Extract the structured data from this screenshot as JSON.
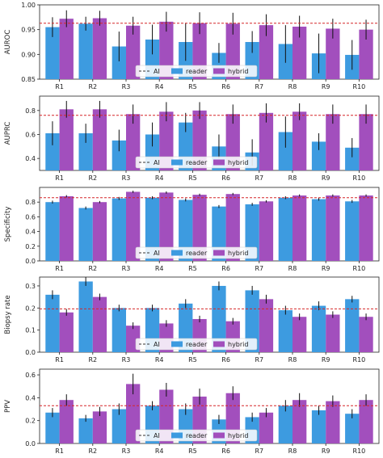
{
  "colors": {
    "reader": "#3d9be0",
    "hybrid": "#a24fbd",
    "ai_line": "#d62728",
    "error_bar": "#111111"
  },
  "legend": {
    "ai": "AI",
    "reader": "reader",
    "hybrid": "hybrid"
  },
  "chart_data": [
    {
      "type": "bar",
      "ylabel": "AUROC",
      "ylim": [
        0.85,
        1.0
      ],
      "yticks": [
        "0.85",
        "0.90",
        "0.95",
        "1.00"
      ],
      "ytick_values": [
        0.85,
        0.9,
        0.95,
        1.0
      ],
      "categories": [
        "R1",
        "R2",
        "R3",
        "R4",
        "R5",
        "R6",
        "R7",
        "R8",
        "R9",
        "R10"
      ],
      "ai_reference": 0.963,
      "series": [
        {
          "name": "reader",
          "values": [
            0.955,
            0.962,
            0.916,
            0.93,
            0.925,
            0.903,
            0.925,
            0.921,
            0.902,
            0.899
          ],
          "errors": [
            0.02,
            0.014,
            0.03,
            0.03,
            0.038,
            0.02,
            0.022,
            0.038,
            0.04,
            0.03
          ]
        },
        {
          "name": "hybrid",
          "values": [
            0.972,
            0.973,
            0.958,
            0.966,
            0.963,
            0.962,
            0.959,
            0.956,
            0.952,
            0.95
          ],
          "errors": [
            0.017,
            0.015,
            0.018,
            0.02,
            0.022,
            0.022,
            0.022,
            0.022,
            0.02,
            0.02
          ]
        }
      ],
      "grid": false,
      "legend_position": "bottom-center"
    },
    {
      "type": "bar",
      "ylabel": "AUPRC",
      "ylim": [
        0.3,
        0.92
      ],
      "yticks": [
        "0.4",
        "0.6",
        "0.8"
      ],
      "ytick_values": [
        0.4,
        0.6,
        0.8
      ],
      "categories": [
        "R1",
        "R2",
        "R3",
        "R4",
        "R5",
        "R6",
        "R7",
        "R8",
        "R9",
        "R10"
      ],
      "ai_reference": 0.76,
      "series": [
        {
          "name": "reader",
          "values": [
            0.61,
            0.61,
            0.55,
            0.6,
            0.7,
            0.5,
            0.45,
            0.62,
            0.54,
            0.49
          ],
          "errors": [
            0.1,
            0.08,
            0.09,
            0.1,
            0.08,
            0.1,
            0.11,
            0.13,
            0.07,
            0.08
          ]
        },
        {
          "name": "hybrid",
          "values": [
            0.81,
            0.81,
            0.77,
            0.79,
            0.8,
            0.77,
            0.78,
            0.79,
            0.77,
            0.77
          ],
          "errors": [
            0.07,
            0.07,
            0.08,
            0.08,
            0.07,
            0.08,
            0.08,
            0.07,
            0.08,
            0.08
          ]
        }
      ],
      "grid": false,
      "legend_position": "bottom-center"
    },
    {
      "type": "bar",
      "ylabel": "Specificity",
      "ylim": [
        0.0,
        1.0
      ],
      "yticks": [
        "0.0",
        "0.2",
        "0.4",
        "0.6",
        "0.8"
      ],
      "ytick_values": [
        0.0,
        0.2,
        0.4,
        0.6,
        0.8
      ],
      "categories": [
        "R1",
        "R2",
        "R3",
        "R4",
        "R5",
        "R6",
        "R7",
        "R8",
        "R9",
        "R10"
      ],
      "ai_reference": 0.86,
      "series": [
        {
          "name": "reader",
          "values": [
            0.8,
            0.72,
            0.85,
            0.86,
            0.83,
            0.74,
            0.77,
            0.86,
            0.84,
            0.81
          ],
          "errors": [
            0.02,
            0.02,
            0.02,
            0.02,
            0.02,
            0.02,
            0.02,
            0.02,
            0.02,
            0.02
          ]
        },
        {
          "name": "hybrid",
          "values": [
            0.88,
            0.8,
            0.94,
            0.93,
            0.9,
            0.91,
            0.81,
            0.89,
            0.89,
            0.89
          ],
          "errors": [
            0.015,
            0.015,
            0.015,
            0.015,
            0.015,
            0.015,
            0.015,
            0.015,
            0.015,
            0.015
          ]
        }
      ],
      "grid": false,
      "legend_position": "bottom-center"
    },
    {
      "type": "bar",
      "ylabel": "Biopsy rate",
      "ylim": [
        0.0,
        0.34
      ],
      "yticks": [
        "0.0",
        "0.1",
        "0.2",
        "0.3"
      ],
      "ytick_values": [
        0.0,
        0.1,
        0.2,
        0.3
      ],
      "categories": [
        "R1",
        "R2",
        "R3",
        "R4",
        "R5",
        "R6",
        "R7",
        "R8",
        "R9",
        "R10"
      ],
      "ai_reference": 0.196,
      "series": [
        {
          "name": "reader",
          "values": [
            0.26,
            0.32,
            0.2,
            0.2,
            0.22,
            0.3,
            0.28,
            0.19,
            0.21,
            0.24
          ],
          "errors": [
            0.02,
            0.02,
            0.015,
            0.015,
            0.02,
            0.02,
            0.02,
            0.02,
            0.02,
            0.015
          ]
        },
        {
          "name": "hybrid",
          "values": [
            0.18,
            0.25,
            0.12,
            0.13,
            0.15,
            0.14,
            0.24,
            0.16,
            0.17,
            0.16
          ],
          "errors": [
            0.015,
            0.015,
            0.015,
            0.015,
            0.015,
            0.015,
            0.02,
            0.015,
            0.015,
            0.015
          ]
        }
      ],
      "grid": false,
      "legend_position": "bottom-center"
    },
    {
      "type": "bar",
      "ylabel": "PPV",
      "ylim": [
        0.0,
        0.65
      ],
      "yticks": [
        "0.0",
        "0.2",
        "0.4",
        "0.6"
      ],
      "ytick_values": [
        0.0,
        0.2,
        0.4,
        0.6
      ],
      "categories": [
        "R1",
        "R2",
        "R3",
        "R4",
        "R5",
        "R6",
        "R7",
        "R8",
        "R9",
        "R10"
      ],
      "ai_reference": 0.33,
      "series": [
        {
          "name": "reader",
          "values": [
            0.27,
            0.22,
            0.3,
            0.33,
            0.3,
            0.21,
            0.23,
            0.33,
            0.29,
            0.26
          ],
          "errors": [
            0.04,
            0.03,
            0.05,
            0.04,
            0.05,
            0.04,
            0.04,
            0.05,
            0.04,
            0.04
          ]
        },
        {
          "name": "hybrid",
          "values": [
            0.38,
            0.28,
            0.52,
            0.47,
            0.41,
            0.44,
            0.27,
            0.38,
            0.37,
            0.38
          ],
          "errors": [
            0.05,
            0.04,
            0.09,
            0.06,
            0.07,
            0.06,
            0.04,
            0.06,
            0.05,
            0.05
          ]
        }
      ],
      "grid": false,
      "legend_position": "bottom-center"
    }
  ]
}
